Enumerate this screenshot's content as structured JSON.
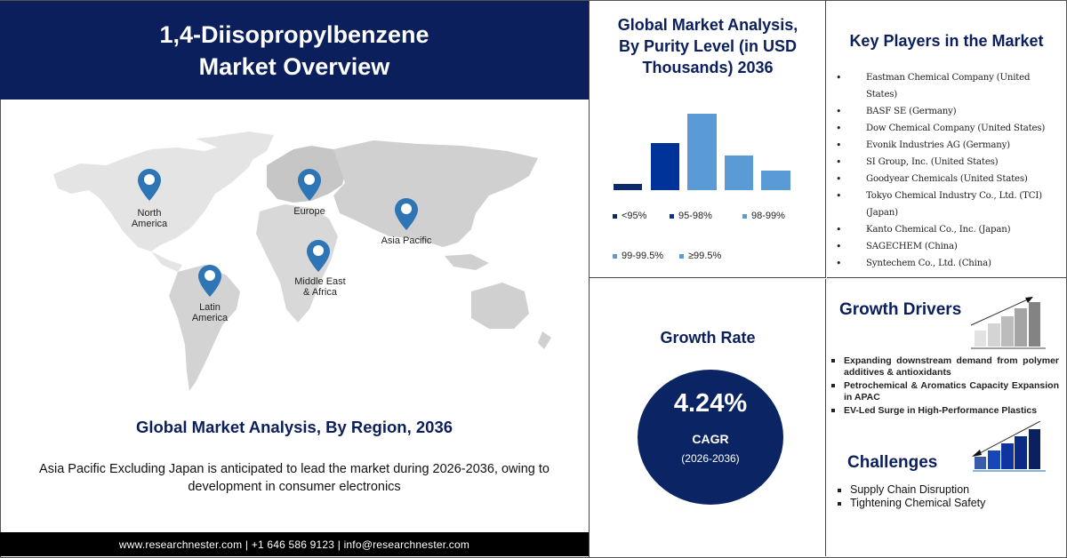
{
  "header": {
    "title_line1": "1,4-Diisopropylbenzene",
    "title_line2": "Market Overview",
    "background_color": "#0b1f5c"
  },
  "map": {
    "regions": [
      {
        "label_line1": "North",
        "label_line2": "America"
      },
      {
        "label_line1": "Europe",
        "label_line2": ""
      },
      {
        "label_line1": "Asia Pacific",
        "label_line2": ""
      },
      {
        "label_line1": "Middle East",
        "label_line2": "& Africa"
      },
      {
        "label_line1": "Latin",
        "label_line2": "America"
      }
    ],
    "pin_color": "#2e75b6"
  },
  "region_analysis": {
    "title": "Global Market Analysis, By Region, 2036",
    "description": "Asia Pacific Excluding Japan is anticipated to lead the market during 2026-2036, owing to development in consumer electronics"
  },
  "footer": {
    "contact": "www.researchnester.com | +1 646 586 9123  | info@researchnester.com"
  },
  "purity_chart": {
    "title_line1": "Global Market Analysis,",
    "title_line2": "By Purity Level  (in USD",
    "title_line3": "Thousands) 2036",
    "legend": [
      {
        "label": "<95%",
        "color": "#0b2a6e"
      },
      {
        "label": "95-98%",
        "color": "#003399"
      },
      {
        "label": "98-99%",
        "color": "#5b9bd5"
      },
      {
        "label": "99-99.5%",
        "color": "#5b9bd5"
      },
      {
        "label": "≥99.5%",
        "color": "#5b9bd5"
      }
    ]
  },
  "chart_data": {
    "type": "bar",
    "title": "Global Market Analysis, By Purity Level (in USD Thousands) 2036",
    "categories": [
      "<95%",
      "95-98%",
      "98-99%",
      "99-99.5%",
      "≥99.5%"
    ],
    "values": [
      7,
      55,
      90,
      41,
      23
    ],
    "colors": [
      "#0b2a6e",
      "#003399",
      "#5b9bd5",
      "#5b9bd5",
      "#5b9bd5"
    ],
    "xlabel": "",
    "ylabel": "",
    "ylim": [
      0,
      100
    ],
    "grid": false,
    "legend_position": "bottom",
    "note": "Relative bar heights only; no axis values shown"
  },
  "key_players": {
    "title": "Key Players in the Market",
    "items": [
      "Eastman Chemical Company (United States)",
      "BASF SE (Germany)",
      "Dow Chemical Company (United States)",
      "Evonik Industries AG (Germany)",
      "SI Group, Inc. (United States)",
      "Goodyear Chemicals (United States)",
      "Tokyo Chemical Industry Co., Ltd. (TCI) (Japan)",
      "Kanto Chemical Co., Inc. (Japan)",
      "SAGECHEM (China)",
      "Syntechem Co., Ltd. (China)"
    ]
  },
  "growth_rate": {
    "title": "Growth Rate",
    "value": "4.24%",
    "label": "CAGR",
    "period": "(2026-2036)",
    "circle_color": "#0b2463"
  },
  "growth_drivers": {
    "title": "Growth Drivers",
    "items": [
      "Expanding downstream demand from polymer additives & antioxidants",
      "Petrochemical & Aromatics Capacity Expansion in APAC",
      "EV-Led Surge in High-Performance Plastics"
    ]
  },
  "challenges": {
    "title": "Challenges",
    "items": [
      "Supply Chain Disruption",
      "Tightening Chemical Safety"
    ]
  }
}
